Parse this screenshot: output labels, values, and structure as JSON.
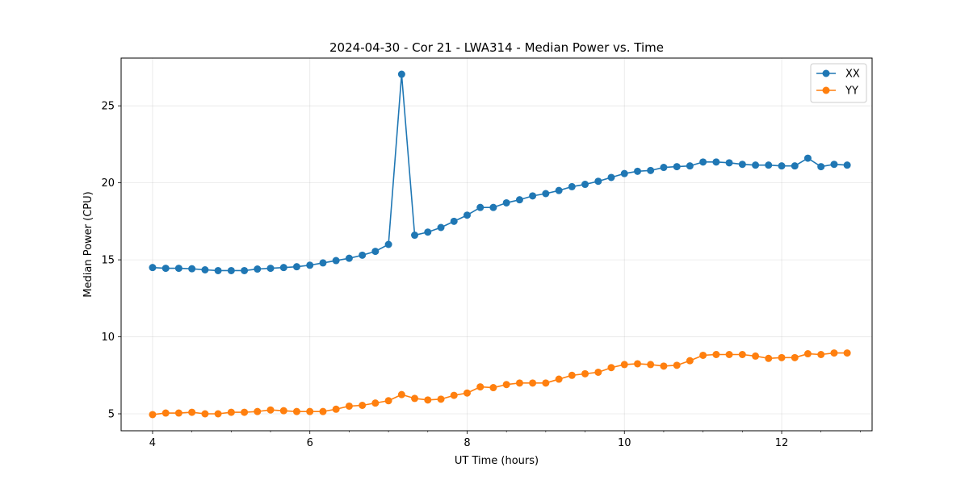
{
  "chart_data": {
    "type": "line",
    "title": "2024-04-30 - Cor 21 - LWA314 - Median Power vs. Time",
    "xlabel": "UT Time (hours)",
    "ylabel": "Median Power (CPU)",
    "xlim": [
      3.6,
      13.15
    ],
    "ylim": [
      3.9,
      28.1
    ],
    "xticks": [
      4,
      6,
      8,
      10,
      12
    ],
    "xticklabels": [
      "4",
      "6",
      "8",
      "10",
      "12"
    ],
    "x_minor_step": 0.5,
    "yticks": [
      5,
      10,
      15,
      20,
      25
    ],
    "yticklabels": [
      "5",
      "10",
      "15",
      "20",
      "25"
    ],
    "grid": true,
    "legend_position": "top-right",
    "x": [
      4.0,
      4.167,
      4.333,
      4.5,
      4.667,
      4.833,
      5.0,
      5.167,
      5.333,
      5.5,
      5.667,
      5.833,
      6.0,
      6.167,
      6.333,
      6.5,
      6.667,
      6.833,
      7.0,
      7.167,
      7.333,
      7.5,
      7.667,
      7.833,
      8.0,
      8.167,
      8.333,
      8.5,
      8.667,
      8.833,
      9.0,
      9.167,
      9.333,
      9.5,
      9.667,
      9.833,
      10.0,
      10.167,
      10.333,
      10.5,
      10.667,
      10.833,
      11.0,
      11.167,
      11.333,
      11.5,
      11.667,
      11.833,
      12.0,
      12.167,
      12.333,
      12.5,
      12.667,
      12.833
    ],
    "series": [
      {
        "name": "XX",
        "color": "#1f77b4",
        "values": [
          14.5,
          14.45,
          14.45,
          14.42,
          14.35,
          14.3,
          14.3,
          14.3,
          14.4,
          14.45,
          14.5,
          14.55,
          14.65,
          14.8,
          14.95,
          15.1,
          15.3,
          15.55,
          16.0,
          27.05,
          16.6,
          16.8,
          17.1,
          17.5,
          17.9,
          18.4,
          18.4,
          18.7,
          18.9,
          19.15,
          19.3,
          19.5,
          19.75,
          19.9,
          20.1,
          20.35,
          20.6,
          20.75,
          20.8,
          21.0,
          21.05,
          21.1,
          21.35,
          21.35,
          21.3,
          21.2,
          21.15,
          21.15,
          21.1,
          21.1,
          21.6,
          21.05,
          21.2,
          21.15
        ]
      },
      {
        "name": "YY",
        "color": "#ff7f0e",
        "values": [
          4.95,
          5.05,
          5.05,
          5.1,
          5.0,
          5.0,
          5.1,
          5.1,
          5.15,
          5.25,
          5.2,
          5.15,
          5.15,
          5.15,
          5.3,
          5.5,
          5.55,
          5.7,
          5.85,
          6.25,
          6.0,
          5.9,
          5.95,
          6.2,
          6.35,
          6.75,
          6.7,
          6.9,
          7.0,
          7.0,
          7.0,
          7.25,
          7.5,
          7.6,
          7.7,
          8.0,
          8.2,
          8.25,
          8.2,
          8.1,
          8.15,
          8.45,
          8.8,
          8.85,
          8.85,
          8.85,
          8.75,
          8.6,
          8.65,
          8.65,
          8.9,
          8.85,
          8.95,
          8.95
        ]
      }
    ]
  }
}
